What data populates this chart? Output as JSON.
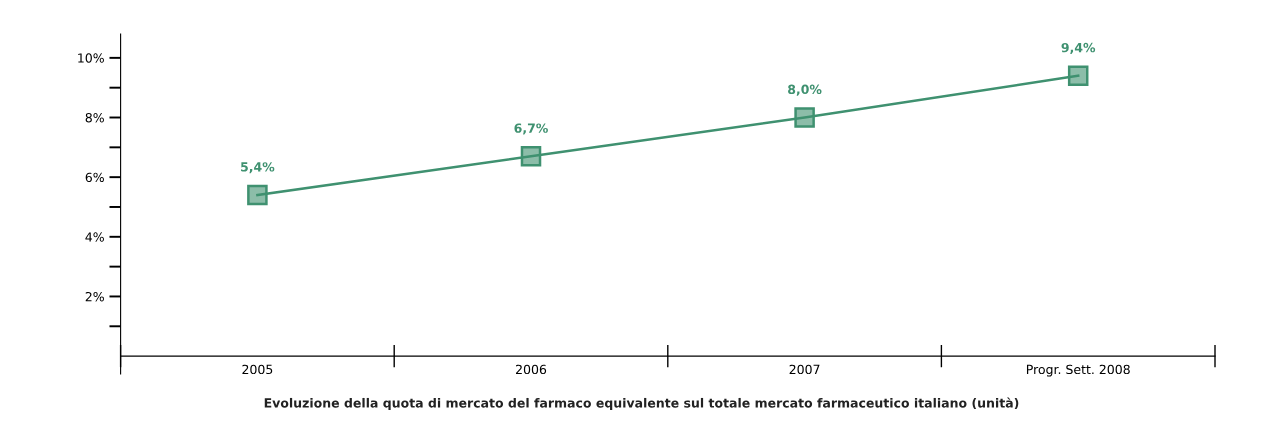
{
  "chart_data": {
    "type": "line",
    "categories": [
      "2005",
      "2006",
      "2007",
      "Progr. Sett. 2008"
    ],
    "series": [
      {
        "color": "#3f9170",
        "values": [
          5.4,
          6.7,
          8.0,
          9.4
        ],
        "value_labels": [
          "5,4%",
          "6,7%",
          "8,0%",
          "9,4%"
        ]
      }
    ],
    "ylim": [
      -0.6,
      10.8
    ],
    "yticks": [
      {
        "value": 1,
        "label": null
      },
      {
        "value": 2,
        "label": "2%"
      },
      {
        "value": 3,
        "label": null
      },
      {
        "value": 4,
        "label": "4%"
      },
      {
        "value": 5,
        "label": null
      },
      {
        "value": 6,
        "label": "6%"
      },
      {
        "value": 7,
        "label": null
      },
      {
        "value": 8,
        "label": "8%"
      },
      {
        "value": 9,
        "label": null
      },
      {
        "value": 10,
        "label": "10%"
      }
    ],
    "marker": "square",
    "grid": false,
    "annotations": [
      "Evoluzione della quota di mercato del farmaco equivalente sul totale mercato farmaceutico italiano (unità)"
    ]
  }
}
